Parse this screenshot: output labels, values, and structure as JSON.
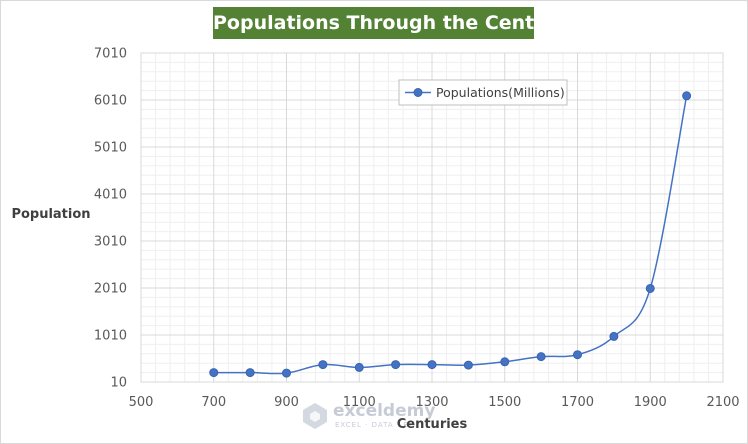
{
  "chart_data": {
    "type": "scatter",
    "title": "Populations Through the Centuries",
    "xlabel": "Centuries",
    "ylabel": "Population",
    "xlim": [
      500,
      2100
    ],
    "ylim": [
      10,
      7010
    ],
    "x_ticks": [
      500,
      700,
      900,
      1100,
      1300,
      1500,
      1700,
      1900,
      2100
    ],
    "y_ticks": [
      10,
      1010,
      2010,
      3010,
      4010,
      5010,
      6010,
      7010
    ],
    "x_tick_labels": [
      "500",
      "700",
      "900",
      "1100",
      "1300",
      "1500",
      "1700",
      "1900",
      "2100"
    ],
    "y_tick_labels": [
      "10",
      "1010",
      "2010",
      "3010",
      "4010",
      "5010",
      "6010",
      "7010"
    ],
    "grid": true,
    "minor_grid": true,
    "smooth_line": true,
    "legend_position": "top-center",
    "colors": {
      "series": "#4472c4",
      "title_bg": "#548235",
      "major_grid": "#d9d9d9",
      "minor_grid": "#efefef"
    },
    "series": [
      {
        "name": "Populations(Millions)",
        "x": [
          700,
          800,
          900,
          1000,
          1100,
          1200,
          1300,
          1400,
          1500,
          1600,
          1700,
          1800,
          1900,
          2000
        ],
        "y": [
          210,
          210,
          200,
          380,
          320,
          380,
          380,
          370,
          440,
          550,
          590,
          980,
          2000,
          6100
        ]
      }
    ],
    "watermark": {
      "icon": "exceldemy-logo-icon",
      "text": "exceldemy",
      "subtext": "EXCEL · DATA · BI"
    }
  }
}
